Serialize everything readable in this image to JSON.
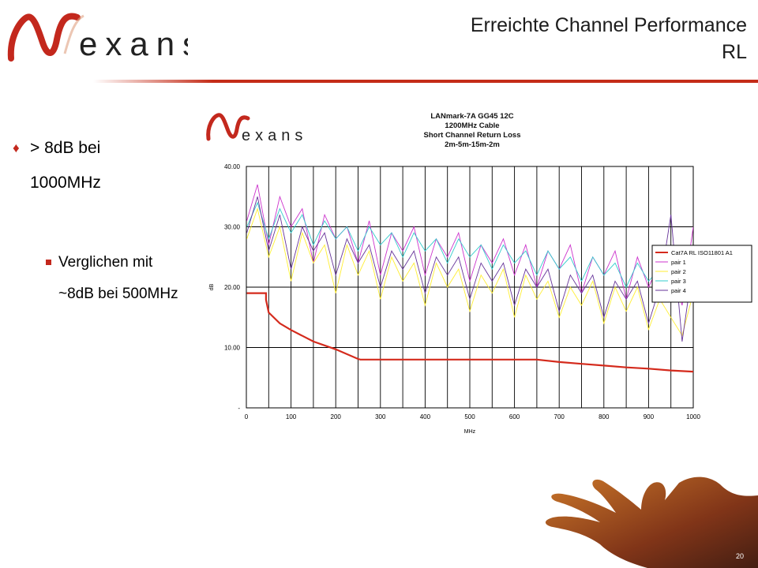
{
  "slide": {
    "title_line1": "Erreichte Channel Performance",
    "title_line2": "RL",
    "bullet_line1": "> 8dB bei",
    "bullet_line2": "1000MHz",
    "sub_line1": "Verglichen mit",
    "sub_line2": "~8dB bei 500MHz",
    "page_number": "20",
    "accent_color": "#c3281d"
  },
  "logo": {
    "text": "exans",
    "alt_mark": "N"
  },
  "chart_data": {
    "type": "line",
    "title_lines": [
      "LANmark-7A GG45 12C",
      "1200MHz Cable",
      "Short Channel Return Loss",
      "2m-5m-15m-2m"
    ],
    "xlabel": "MHz",
    "ylabel": "dB",
    "xlim": [
      0,
      1000
    ],
    "ylim": [
      0,
      40
    ],
    "x_ticks": [
      "0",
      "100",
      "200",
      "300",
      "400",
      "500",
      "600",
      "700",
      "800",
      "900",
      "1000"
    ],
    "y_ticks": [
      "-",
      "10.00",
      "20.00",
      "30.00",
      "40.00"
    ],
    "grid": true,
    "legend_position": "right",
    "series": [
      {
        "name": "Cat7A RL ISO11801 A1",
        "color": "#d42a1c",
        "x": [
          1,
          44,
          44,
          50,
          75,
          100,
          150,
          200,
          250,
          255,
          300,
          400,
          500,
          600,
          650,
          700,
          750,
          800,
          850,
          900,
          950,
          1000
        ],
        "y": [
          19,
          19,
          17.9,
          15.8,
          14.0,
          12.9,
          11.0,
          9.7,
          8.1,
          8.0,
          8.0,
          8.0,
          8.0,
          8.0,
          8.0,
          7.6,
          7.3,
          7.0,
          6.7,
          6.5,
          6.2,
          6.0
        ]
      },
      {
        "name": "pair 1",
        "color": "#cc33cc",
        "x": [
          1,
          25,
          50,
          75,
          100,
          125,
          150,
          175,
          200,
          225,
          250,
          275,
          300,
          325,
          350,
          375,
          400,
          425,
          450,
          475,
          500,
          525,
          550,
          575,
          600,
          625,
          650,
          675,
          700,
          725,
          750,
          775,
          800,
          825,
          850,
          875,
          900,
          925,
          950,
          975,
          1000
        ],
        "y": [
          31,
          37,
          27,
          35,
          30,
          33,
          24,
          32,
          28,
          30,
          24,
          31,
          22,
          29,
          26,
          30,
          22,
          28,
          25,
          29,
          21,
          27,
          24,
          28,
          22,
          27,
          20,
          26,
          23,
          27,
          19,
          25,
          22,
          26,
          18,
          25,
          20,
          24,
          23,
          17,
          30
        ]
      },
      {
        "name": "pair 2",
        "color": "#ffee33",
        "x": [
          1,
          25,
          50,
          75,
          100,
          125,
          150,
          175,
          200,
          225,
          250,
          275,
          300,
          325,
          350,
          375,
          400,
          425,
          450,
          475,
          500,
          525,
          550,
          575,
          600,
          625,
          650,
          675,
          700,
          725,
          750,
          775,
          800,
          825,
          850,
          875,
          900,
          925,
          950,
          975,
          1000
        ],
        "y": [
          28,
          33,
          25,
          30,
          21,
          29,
          24,
          27,
          19,
          27,
          22,
          26,
          18,
          25,
          21,
          24,
          17,
          24,
          20,
          23,
          16,
          22,
          19,
          23,
          15,
          22,
          18,
          21,
          15,
          20,
          17,
          21,
          14,
          20,
          16,
          20,
          13,
          18,
          15,
          12,
          19
        ]
      },
      {
        "name": "pair 3",
        "color": "#33cccc",
        "x": [
          1,
          25,
          50,
          75,
          100,
          125,
          150,
          175,
          200,
          225,
          250,
          275,
          300,
          325,
          350,
          375,
          400,
          425,
          450,
          475,
          500,
          525,
          550,
          575,
          600,
          625,
          650,
          675,
          700,
          725,
          750,
          775,
          800,
          825,
          850,
          875,
          900,
          925,
          950,
          975,
          1000
        ],
        "y": [
          30,
          34,
          28,
          33,
          29,
          32,
          27,
          31,
          28,
          30,
          26,
          30,
          27,
          29,
          25,
          29,
          26,
          28,
          24,
          28,
          25,
          27,
          23,
          27,
          24,
          26,
          22,
          26,
          23,
          25,
          21,
          25,
          22,
          24,
          20,
          24,
          21,
          23,
          22,
          19,
          21
        ]
      },
      {
        "name": "pair 4",
        "color": "#663399",
        "x": [
          1,
          25,
          50,
          75,
          100,
          125,
          150,
          175,
          200,
          225,
          250,
          275,
          300,
          325,
          350,
          375,
          400,
          425,
          450,
          475,
          500,
          525,
          550,
          575,
          600,
          625,
          650,
          675,
          700,
          725,
          750,
          775,
          800,
          825,
          850,
          875,
          900,
          925,
          950,
          975,
          1000
        ],
        "y": [
          29,
          35,
          26,
          32,
          23,
          30,
          26,
          29,
          22,
          28,
          24,
          27,
          20,
          26,
          23,
          26,
          19,
          25,
          22,
          25,
          18,
          24,
          21,
          24,
          17,
          23,
          20,
          23,
          16,
          22,
          19,
          22,
          15,
          21,
          18,
          21,
          14,
          20,
          32,
          11,
          24
        ]
      }
    ]
  }
}
